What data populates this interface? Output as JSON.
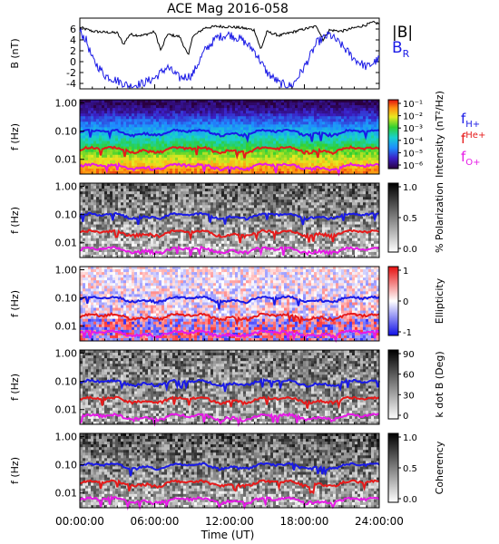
{
  "figure": {
    "title": "ACE Mag 2016-058",
    "xlabel": "Time (UT)",
    "time_ticks": [
      "00:00:00",
      "06:00:00",
      "12:00:00",
      "18:00:00",
      "24:00:00"
    ]
  },
  "chart_data": [
    {
      "type": "line",
      "title": "ACE Mag 2016-058",
      "ylabel": "B (nT)",
      "ylim": [
        -5,
        8
      ],
      "yticks": [
        "6",
        "4",
        "2",
        "0",
        "-2",
        "-4"
      ],
      "x_range_hours": [
        0,
        24
      ],
      "series": [
        {
          "name": "|B|",
          "color": "#000000",
          "x": [
            0,
            1,
            2,
            3,
            3.5,
            4,
            5,
            6,
            6.5,
            7,
            8,
            8.7,
            9,
            10,
            11,
            12,
            13,
            14,
            14.5,
            15,
            16,
            17,
            18,
            19,
            19.5,
            20,
            21,
            22,
            23,
            23.5,
            24
          ],
          "values": [
            6.3,
            5.6,
            5.4,
            5.3,
            3.2,
            5.0,
            4.8,
            5.5,
            2.0,
            5.0,
            4.6,
            1.0,
            4.5,
            6.2,
            6.5,
            6.4,
            6.2,
            5.8,
            2.2,
            5.5,
            4.8,
            5.4,
            6.0,
            6.5,
            4.0,
            5.8,
            5.6,
            6.2,
            6.8,
            7.2,
            7.0
          ]
        },
        {
          "name": "B_R",
          "color": "#1a1ae6",
          "x": [
            0,
            0.5,
            1,
            2,
            3,
            4,
            5,
            6,
            7,
            8,
            9,
            10,
            11,
            12,
            13,
            14,
            15,
            16,
            17,
            18,
            19,
            20,
            21,
            22,
            23,
            24
          ],
          "values": [
            5.5,
            4.0,
            0.5,
            -2.5,
            -3.5,
            -4.5,
            -4.0,
            -3.0,
            -1.0,
            -3.0,
            -2.5,
            2.0,
            4.5,
            5.0,
            4.0,
            2.0,
            -2.0,
            -4.0,
            -4.5,
            -1.0,
            3.5,
            5.0,
            3.0,
            0.5,
            -1.0,
            0.5
          ]
        }
      ],
      "legend": [
        "|B|",
        "B_R"
      ]
    },
    {
      "type": "heatmap",
      "ylabel": "f (Hz)",
      "yticks": [
        "1.00",
        "0.10",
        "0.01"
      ],
      "colorbar": {
        "label": "Intensity (nT²/Hz)",
        "ticks": [
          "10⁻¹",
          "10⁻²",
          "10⁻³",
          "10⁻⁴",
          "10⁻⁵",
          "10⁻⁶"
        ],
        "scale": "rainbow"
      },
      "legend": [
        "f_H+",
        "f_He+",
        "f_O+"
      ]
    },
    {
      "type": "heatmap",
      "ylabel": "f (Hz)",
      "yticks": [
        "1.00",
        "0.10",
        "0.01"
      ],
      "colorbar": {
        "label": "% Polarization",
        "ticks": [
          "1.0",
          "0.5",
          "0.0"
        ],
        "scale": "grayscale"
      }
    },
    {
      "type": "heatmap",
      "ylabel": "f (Hz)",
      "yticks": [
        "1.00",
        "0.10",
        "0.01"
      ],
      "colorbar": {
        "label": "Ellipticity",
        "ticks": [
          "1",
          "0",
          "-1"
        ],
        "scale": "blue-white-red"
      }
    },
    {
      "type": "heatmap",
      "ylabel": "f (Hz)",
      "yticks": [
        "1.00",
        "0.10",
        "0.01"
      ],
      "colorbar": {
        "label": "k dot B (Deg)",
        "ticks": [
          "90",
          "60",
          "30",
          "0"
        ],
        "scale": "grayscale"
      }
    },
    {
      "type": "heatmap",
      "ylabel": "f (Hz)",
      "yticks": [
        "1.00",
        "0.10",
        "0.01"
      ],
      "colorbar": {
        "label": "Coherency",
        "ticks": [
          "1.0",
          "0.5",
          "0.0"
        ],
        "scale": "grayscale"
      }
    }
  ],
  "gyrofrequency_lines": {
    "f_H+": {
      "color": "#1a1ae6",
      "approx_hz": 0.09
    },
    "f_He+": {
      "color": "#e61a1a",
      "approx_hz": 0.022
    },
    "f_O+": {
      "color": "#e619e6",
      "approx_hz": 0.0055
    }
  },
  "legend_labels": {
    "B": "|B|",
    "BR_main": "B",
    "BR_sub": "R",
    "fH_main": "f",
    "fH_sub": "H+",
    "fHe_main": "f",
    "fHe_sup": "He+",
    "fO_main": "f",
    "fO_sub": "O+"
  },
  "colors": {
    "B_total": "#000000",
    "B_R": "#1a1ae6",
    "f_H": "#1a1ae6",
    "f_He": "#e61a1a",
    "f_O": "#e619e6"
  }
}
